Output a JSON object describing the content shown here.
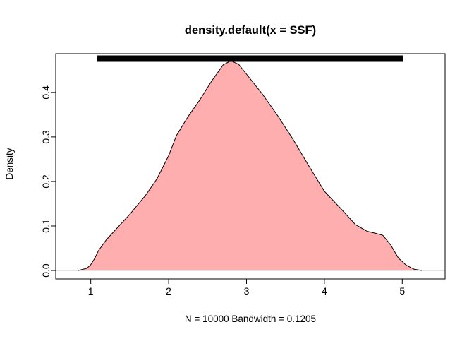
{
  "chart_data": {
    "type": "area",
    "title": "density.default(x = SSF)",
    "xlabel": "N = 10000   Bandwidth = 0.1205",
    "ylabel": "Density",
    "xlim": [
      0.55,
      5.55
    ],
    "ylim": [
      -0.019,
      0.487
    ],
    "x_ticks": [
      1,
      2,
      3,
      4,
      5
    ],
    "x_tick_labels": [
      "1",
      "2",
      "3",
      "4",
      "5"
    ],
    "y_ticks": [
      0.0,
      0.1,
      0.2,
      0.3,
      0.4
    ],
    "y_tick_labels": [
      "0.0",
      "0.1",
      "0.2",
      "0.3",
      "0.4"
    ],
    "series": [
      {
        "fill_color": "#ffaeb0",
        "line_color": "#000000",
        "x": [
          0.84,
          0.95,
          1.0,
          1.05,
          1.1,
          1.2,
          1.3,
          1.5,
          1.7,
          1.85,
          2.0,
          2.1,
          2.25,
          2.4,
          2.55,
          2.7,
          2.8,
          2.9,
          3.0,
          3.2,
          3.4,
          3.6,
          3.8,
          4.0,
          4.2,
          4.4,
          4.55,
          4.65,
          4.75,
          4.85,
          4.95,
          5.05,
          5.15,
          5.25
        ],
        "y": [
          0.0,
          0.005,
          0.013,
          0.027,
          0.045,
          0.069,
          0.088,
          0.126,
          0.168,
          0.206,
          0.258,
          0.303,
          0.346,
          0.383,
          0.425,
          0.462,
          0.471,
          0.463,
          0.441,
          0.397,
          0.348,
          0.294,
          0.235,
          0.178,
          0.141,
          0.103,
          0.088,
          0.084,
          0.079,
          0.058,
          0.028,
          0.012,
          0.003,
          0.0
        ]
      }
    ],
    "baseline": {
      "y": 0,
      "color": "#c8c8c8"
    },
    "rug": {
      "x_start": 1.08,
      "x_end": 5.01,
      "color": "#000000"
    },
    "grid": false,
    "legend": "none"
  }
}
